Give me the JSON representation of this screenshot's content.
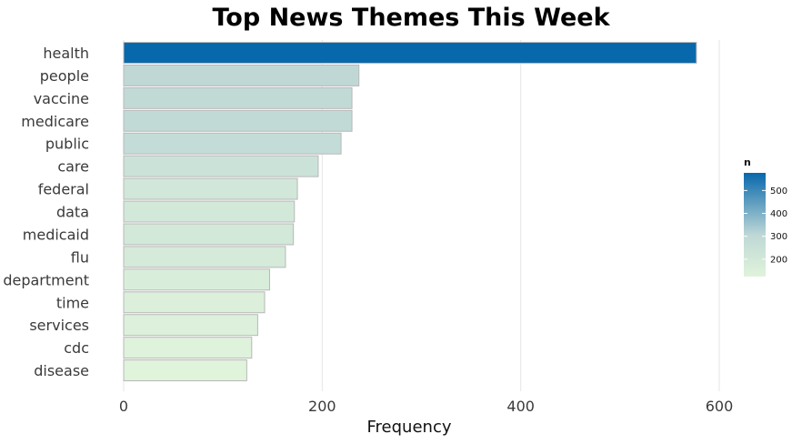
{
  "chart_data": {
    "type": "bar",
    "orientation": "horizontal",
    "title": "Top News Themes This Week",
    "xlabel": "Frequency",
    "ylabel": "",
    "categories": [
      "health",
      "people",
      "vaccine",
      "medicare",
      "public",
      "care",
      "federal",
      "data",
      "medicaid",
      "flu",
      "department",
      "time",
      "services",
      "cdc",
      "disease"
    ],
    "values": [
      577,
      237,
      230,
      230,
      219,
      196,
      175,
      172,
      171,
      163,
      147,
      142,
      135,
      129,
      124
    ],
    "xlim": [
      0,
      600
    ],
    "xticks": [
      "0",
      "200",
      "400",
      "600"
    ],
    "grid": "vertical",
    "legend": {
      "title": "n",
      "position": "right",
      "ticks": [
        "200",
        "300",
        "400",
        "500"
      ],
      "range": [
        124,
        577
      ],
      "color_low": "#e0f3db",
      "color_high": "#0868ac"
    }
  }
}
